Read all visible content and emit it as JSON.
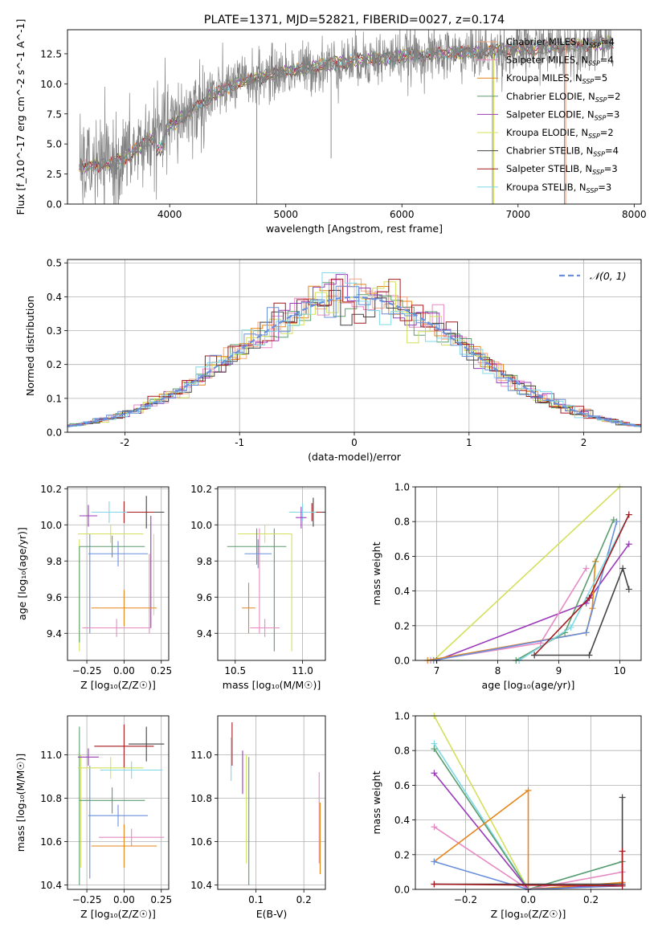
{
  "colors": {
    "data_spectrum": "#808080",
    "models": [
      "#f4a582",
      "#e78ac3",
      "#e6861b",
      "#5b9d6e",
      "#9a3ab8",
      "#d4e05a",
      "#444444",
      "#a6191e",
      "#7fd8e6",
      "#6a8fdc"
    ]
  },
  "chart_data": [
    {
      "id": "spectrum",
      "type": "line",
      "title": "PLATE=1371, MJD=52821, FIBERID=0027, z=0.174",
      "xlabel": "wavelength [Angstrom, rest frame]",
      "ylabel": "Flux [f_λ10^-17 erg cm^-2 s^-1 A^-1]",
      "xlim": [
        3120,
        8060
      ],
      "ylim": [
        0,
        14.5
      ],
      "xticks": [
        4000,
        5000,
        6000,
        7000,
        8000
      ],
      "yticks": [
        0.0,
        2.5,
        5.0,
        7.5,
        10.0,
        12.5
      ],
      "legend_position": "top-right",
      "legend": [
        {
          "label": "Chabrier MILES, N_SSP=4",
          "color_index": 0
        },
        {
          "label": "Salpeter MILES, N_SSP=4",
          "color_index": 1
        },
        {
          "label": "Kroupa MILES, N_SSP=5",
          "color_index": 2
        },
        {
          "label": "Chabrier ELODIE, N_SSP=2",
          "color_index": 3
        },
        {
          "label": "Salpeter ELODIE, N_SSP=3",
          "color_index": 4
        },
        {
          "label": "Kroupa ELODIE, N_SSP=2",
          "color_index": 5
        },
        {
          "label": "Chabrier STELIB, N_SSP=4",
          "color_index": 6
        },
        {
          "label": "Salpeter STELIB, N_SSP=3",
          "color_index": 7
        },
        {
          "label": "Kroupa STELIB, N_SSP=3",
          "color_index": 8
        }
      ],
      "continuum": {
        "x": [
          3200,
          3400,
          3500,
          3600,
          3700,
          3800,
          3900,
          4000,
          4100,
          4200,
          4300,
          4400,
          4500,
          4600,
          4800,
          5000,
          5200,
          5400,
          5600,
          5800,
          6000,
          6200,
          6500,
          6800,
          7000,
          7200,
          7500,
          7800
        ],
        "y": [
          3.0,
          3.3,
          3.4,
          3.8,
          4.5,
          5.2,
          5.8,
          6.5,
          7.2,
          7.9,
          8.5,
          9.2,
          9.7,
          10.1,
          10.6,
          11.0,
          11.3,
          11.7,
          11.9,
          12.1,
          12.3,
          12.4,
          12.6,
          12.7,
          12.9,
          13.0,
          13.2,
          13.4
        ]
      }
    },
    {
      "id": "residuals",
      "type": "histogram",
      "xlabel": "(data-model)/error",
      "ylabel": "Normed distribution",
      "xlim": [
        -2.5,
        2.5
      ],
      "ylim": [
        0,
        0.51
      ],
      "xticks": [
        -2,
        -1,
        0,
        1,
        2
      ],
      "yticks": [
        0.0,
        0.1,
        0.2,
        0.3,
        0.4,
        0.5
      ],
      "grid": true,
      "legend_position": "top-right",
      "legend_label": "𝒩(0, 1)",
      "gaussian": {
        "mean": 0,
        "sigma": 1
      }
    },
    {
      "id": "age_vs_Z",
      "type": "errorbar",
      "xlabel": "Z [log₁₀(Z/Z☉)]",
      "ylabel": "age  [log₁₀(age/yr)]",
      "xlim": [
        -0.38,
        0.3
      ],
      "ylim": [
        9.25,
        10.21
      ],
      "xticks": [
        -0.25,
        0.0,
        0.25
      ],
      "xticklabels": [
        "−0.25",
        "0.00",
        "0.25"
      ],
      "yticks": [
        9.4,
        9.6,
        9.8,
        10.0,
        10.2
      ],
      "grid": true,
      "points": [
        {
          "x": 0.15,
          "y": 10.07,
          "xerr": 0.12,
          "yerr": 0.09,
          "c": 6
        },
        {
          "x": 0.0,
          "y": 10.07,
          "xerr": 0.2,
          "yerr": 0.06,
          "c": 7
        },
        {
          "x": -0.1,
          "y": 10.07,
          "xerr": 0.12,
          "yerr": 0.06,
          "c": 8
        },
        {
          "x": -0.24,
          "y": 10.05,
          "xerr": 0.06,
          "yerr": 0.06,
          "c": 4
        },
        {
          "x": -0.09,
          "y": 9.95,
          "xerr": 0.22,
          "yerr": 0.05,
          "c": 5
        },
        {
          "x": -0.08,
          "y": 9.88,
          "xerr": 0.22,
          "yerr": 0.06,
          "c": 3
        },
        {
          "x": -0.04,
          "y": 9.84,
          "xerr": 0.2,
          "yerr": 0.07,
          "c": 9
        },
        {
          "x": 0.0,
          "y": 9.54,
          "xerr": 0.22,
          "yerr": 0.1,
          "c": 2
        },
        {
          "x": -0.05,
          "y": 9.43,
          "xerr": 0.23,
          "yerr": 0.05,
          "c": 1
        }
      ],
      "vlines": [
        {
          "x": -0.3,
          "y0": 9.3,
          "y1": 9.92,
          "c": 5
        },
        {
          "x": -0.3,
          "y0": 9.35,
          "y1": 9.88,
          "c": 3
        },
        {
          "x": -0.23,
          "y0": 9.4,
          "y1": 9.95,
          "c": 9
        },
        {
          "x": 0.17,
          "y0": 9.4,
          "y1": 9.84,
          "c": 1
        },
        {
          "x": 0.18,
          "y0": 9.43,
          "y1": 10.05,
          "c": 4
        },
        {
          "x": 0.2,
          "y0": 9.5,
          "y1": 9.95,
          "c": 5
        }
      ]
    },
    {
      "id": "age_vs_mass",
      "type": "errorbar",
      "xlabel": "mass [log₁₀(M/M☉)]",
      "ylabel": "",
      "xlim": [
        10.37,
        11.17
      ],
      "ylim": [
        9.25,
        10.21
      ],
      "xticks": [
        10.5,
        11.0
      ],
      "xticklabels": [
        "10.5",
        "11.0"
      ],
      "yticks": [
        9.4,
        9.6,
        9.8,
        10.0,
        10.2
      ],
      "grid": true,
      "points": [
        {
          "x": 11.08,
          "y": 10.07,
          "xerr": 0.09,
          "yerr": 0.08,
          "c": 6
        },
        {
          "x": 11.07,
          "y": 10.07,
          "xerr": 0.08,
          "yerr": 0.05,
          "c": 7
        },
        {
          "x": 11.0,
          "y": 10.07,
          "xerr": 0.1,
          "yerr": 0.05,
          "c": 8
        },
        {
          "x": 10.99,
          "y": 10.04,
          "xerr": 0.04,
          "yerr": 0.06,
          "c": 4
        },
        {
          "x": 10.72,
          "y": 9.95,
          "xerr": 0.2,
          "yerr": 0.05,
          "c": 5
        },
        {
          "x": 10.66,
          "y": 9.88,
          "xerr": 0.22,
          "yerr": 0.1,
          "c": 3
        },
        {
          "x": 10.67,
          "y": 9.84,
          "xerr": 0.1,
          "yerr": 0.08,
          "c": 9
        },
        {
          "x": 10.6,
          "y": 9.54,
          "xerr": 0.05,
          "yerr": 0.14,
          "c": 2
        },
        {
          "x": 10.72,
          "y": 9.43,
          "xerr": 0.11,
          "yerr": 0.05,
          "c": 1
        }
      ],
      "vlines": [
        {
          "x": 10.92,
          "y0": 9.3,
          "y1": 9.95,
          "c": 5
        },
        {
          "x": 10.79,
          "y0": 9.3,
          "y1": 9.98,
          "c": 3
        },
        {
          "x": 10.68,
          "y0": 9.4,
          "y1": 9.98,
          "c": 1
        }
      ]
    },
    {
      "id": "mass_weight_vs_age",
      "type": "line",
      "xlabel": "age  [log₁₀(age/yr)]",
      "ylabel": "mass weight",
      "xlim": [
        6.65,
        10.35
      ],
      "ylim": [
        0,
        1
      ],
      "xticks": [
        7,
        8,
        9,
        10
      ],
      "yticks": [
        0.0,
        0.2,
        0.4,
        0.6,
        0.8,
        1.0
      ],
      "grid": true,
      "series": [
        {
          "c": 5,
          "x": [
            6.95,
            10.0
          ],
          "y": [
            0.0,
            1.0
          ]
        },
        {
          "c": 4,
          "x": [
            7.0,
            9.45,
            10.15
          ],
          "y": [
            0.0,
            0.33,
            0.67
          ]
        },
        {
          "c": 1,
          "x": [
            6.9,
            8.7,
            9.45
          ],
          "y": [
            0.0,
            0.1,
            0.53
          ]
        },
        {
          "c": 2,
          "x": [
            6.85,
            9.45,
            9.55,
            9.6
          ],
          "y": [
            0.0,
            0.16,
            0.3,
            0.57
          ]
        },
        {
          "c": 9,
          "x": [
            6.95,
            9.45,
            9.95
          ],
          "y": [
            0.0,
            0.16,
            0.8
          ]
        },
        {
          "c": 3,
          "x": [
            8.3,
            9.1,
            9.9
          ],
          "y": [
            0.0,
            0.16,
            0.81
          ]
        },
        {
          "c": 8,
          "x": [
            8.35,
            9.2,
            10.15
          ],
          "y": [
            0.0,
            0.19,
            0.84
          ]
        },
        {
          "c": 7,
          "x": [
            8.6,
            9.5,
            10.15
          ],
          "y": [
            0.03,
            0.36,
            0.84
          ]
        },
        {
          "c": 6,
          "x": [
            8.6,
            9.5,
            10.05,
            10.15
          ],
          "y": [
            0.03,
            0.03,
            0.53,
            0.41
          ]
        }
      ]
    },
    {
      "id": "mass_vs_Z",
      "type": "errorbar",
      "xlabel": "Z [log₁₀(Z/Z☉)]",
      "ylabel": "mass [log₁₀(M/M☉)]",
      "xlim": [
        -0.38,
        0.3
      ],
      "ylim": [
        10.38,
        11.18
      ],
      "xticks": [
        -0.25,
        0.0,
        0.25
      ],
      "xticklabels": [
        "−0.25",
        "0.00",
        "0.25"
      ],
      "yticks": [
        10.4,
        10.6,
        10.8,
        11.0
      ],
      "grid": true,
      "points": [
        {
          "x": 0.15,
          "y": 11.05,
          "xerr": 0.12,
          "yerr": 0.08,
          "c": 6
        },
        {
          "x": 0.0,
          "y": 11.04,
          "xerr": 0.2,
          "yerr": 0.1,
          "c": 7
        },
        {
          "x": -0.24,
          "y": 10.99,
          "xerr": 0.07,
          "yerr": 0.04,
          "c": 4
        },
        {
          "x": -0.09,
          "y": 10.94,
          "xerr": 0.22,
          "yerr": 0.05,
          "c": 5
        },
        {
          "x": 0.05,
          "y": 10.93,
          "xerr": 0.21,
          "yerr": 0.04,
          "c": 8
        },
        {
          "x": -0.08,
          "y": 10.79,
          "xerr": 0.22,
          "yerr": 0.06,
          "c": 3
        },
        {
          "x": -0.04,
          "y": 10.72,
          "xerr": 0.2,
          "yerr": 0.05,
          "c": 9
        },
        {
          "x": 0.05,
          "y": 10.62,
          "xerr": 0.22,
          "yerr": 0.04,
          "c": 1
        },
        {
          "x": 0.0,
          "y": 10.58,
          "xerr": 0.22,
          "yerr": 0.1,
          "c": 2
        }
      ],
      "vlines": [
        {
          "x": -0.3,
          "y0": 10.4,
          "y1": 11.13,
          "c": 3
        },
        {
          "x": -0.29,
          "y0": 10.48,
          "y1": 11.0,
          "c": 5
        },
        {
          "x": -0.23,
          "y0": 10.43,
          "y1": 10.95,
          "c": 9
        }
      ]
    },
    {
      "id": "mass_vs_EBV",
      "type": "errorbar",
      "xlabel": "E(B-V)",
      "ylabel": "",
      "xlim": [
        0.02,
        0.245
      ],
      "ylim": [
        10.38,
        11.18
      ],
      "xticks": [
        0.1,
        0.2
      ],
      "xticklabels": [
        "0.1",
        "0.2"
      ],
      "yticks": [
        10.4,
        10.6,
        10.8,
        11.0
      ],
      "grid": true,
      "vlines": [
        {
          "x": 0.05,
          "y0": 10.95,
          "y1": 11.15,
          "c": 7
        },
        {
          "x": 0.048,
          "y0": 10.88,
          "y1": 11.08,
          "c": 8
        },
        {
          "x": 0.072,
          "y0": 10.82,
          "y1": 11.02,
          "c": 4
        },
        {
          "x": 0.08,
          "y0": 10.5,
          "y1": 11.0,
          "c": 5
        },
        {
          "x": 0.085,
          "y0": 10.4,
          "y1": 10.99,
          "c": 3
        },
        {
          "x": 0.232,
          "y0": 10.5,
          "y1": 10.92,
          "c": 1
        },
        {
          "x": 0.234,
          "y0": 10.45,
          "y1": 10.78,
          "c": 2
        }
      ]
    },
    {
      "id": "mass_weight_vs_Z",
      "type": "line",
      "xlabel": "Z [log₁₀(Z/Z☉)]",
      "ylabel": "mass weight",
      "xlim": [
        -0.36,
        0.36
      ],
      "ylim": [
        0,
        1
      ],
      "xticks": [
        -0.2,
        0.0,
        0.2
      ],
      "xticklabels": [
        "−0.2",
        "0.0",
        "0.2"
      ],
      "yticks": [
        0.0,
        0.2,
        0.4,
        0.6,
        0.8,
        1.0
      ],
      "grid": true,
      "series": [
        {
          "c": 5,
          "x": [
            -0.3,
            0.0
          ],
          "y": [
            1.0,
            0.0
          ]
        },
        {
          "c": 8,
          "x": [
            -0.3,
            0.0,
            0.3
          ],
          "y": [
            0.84,
            0.0,
            0.16
          ]
        },
        {
          "c": 3,
          "x": [
            -0.3,
            0.0,
            0.3
          ],
          "y": [
            0.81,
            0.0,
            0.16
          ]
        },
        {
          "c": 4,
          "x": [
            -0.3,
            0.0,
            0.3
          ],
          "y": [
            0.67,
            0.0,
            0.03
          ]
        },
        {
          "c": 1,
          "x": [
            -0.3,
            0.0,
            0.3
          ],
          "y": [
            0.36,
            0.0,
            0.1
          ]
        },
        {
          "c": 2,
          "x": [
            -0.3,
            0.0,
            0.0,
            0.3
          ],
          "y": [
            0.16,
            0.57,
            0.0,
            0.04
          ]
        },
        {
          "c": 9,
          "x": [
            -0.3,
            0.0,
            0.3
          ],
          "y": [
            0.16,
            0.0,
            0.02
          ]
        },
        {
          "c": 6,
          "x": [
            -0.3,
            0.3,
            0.3
          ],
          "y": [
            0.03,
            0.03,
            0.53
          ]
        },
        {
          "c": 7,
          "x": [
            -0.3,
            0.3,
            0.3
          ],
          "y": [
            0.03,
            0.02,
            0.22
          ]
        }
      ]
    }
  ]
}
